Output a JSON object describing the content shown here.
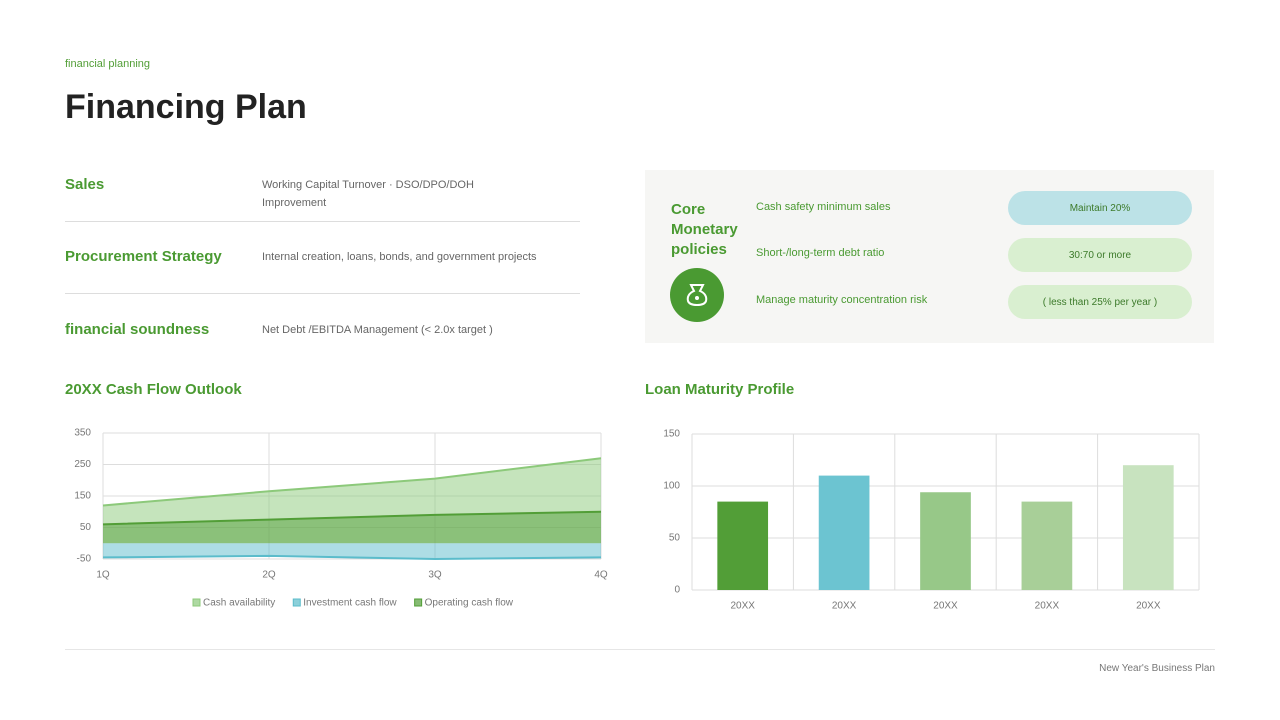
{
  "header": {
    "kicker": "financial planning",
    "title": "Financing Plan"
  },
  "table": {
    "rows": [
      [
        "Sales",
        "Working Capital Turnover · DSO/DPO/DOH Improvement"
      ],
      [
        "Procurement Strategy",
        "Internal creation, loans, bonds, and government projects"
      ],
      [
        "financial soundness",
        "Net Debt /EBITDA Management (< 2.0x target )"
      ]
    ]
  },
  "policies": {
    "title": "Core Monetary policies",
    "items": [
      {
        "label": "Cash safety minimum sales",
        "badge": "Maintain 20%"
      },
      {
        "label": "Short-/long-term debt ratio",
        "badge": "30:70 or more"
      },
      {
        "label": "Manage maturity concentration risk",
        "badge": "( less than 25% per year )"
      }
    ]
  },
  "chart_data": [
    {
      "type": "area",
      "title": "20XX Cash Flow Outlook",
      "categories": [
        "1Q",
        "2Q",
        "3Q",
        "4Q"
      ],
      "series": [
        {
          "name": "Cash availability",
          "color": "#8cc97a",
          "values": [
            120,
            165,
            205,
            270
          ]
        },
        {
          "name": "Investment cash flow",
          "color": "#5bbccb",
          "values": [
            -45,
            -40,
            -50,
            -45
          ]
        },
        {
          "name": "Operating cash flow",
          "color": "#529e37",
          "values": [
            60,
            75,
            90,
            100
          ]
        }
      ],
      "ylim": [
        -50,
        350
      ],
      "yticks": [
        -50,
        50,
        150,
        250,
        350
      ],
      "grid": true,
      "legend": "bottom"
    },
    {
      "type": "bar",
      "title": "Loan Maturity Profile",
      "categories": [
        "20XX",
        "20XX",
        "20XX",
        "20XX",
        "20XX"
      ],
      "values": [
        85,
        110,
        94,
        85,
        120
      ],
      "colors": [
        "#529e37",
        "#6cc4d1",
        "#97c888",
        "#a8cf98",
        "#c8e3bf"
      ],
      "ylim": [
        0,
        150
      ],
      "yticks": [
        0,
        50,
        100,
        150
      ],
      "grid": true
    }
  ],
  "footer": {
    "text": "New Year's Business Plan"
  }
}
